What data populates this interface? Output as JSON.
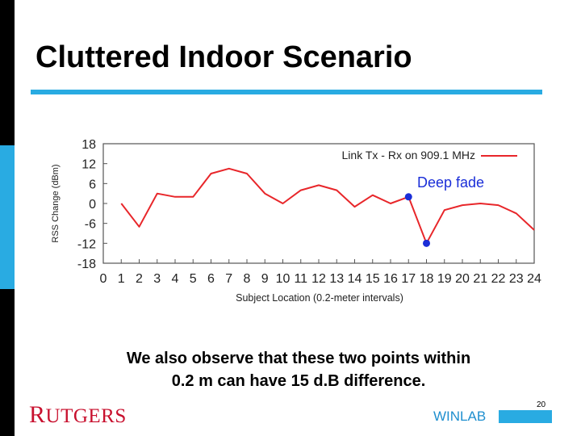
{
  "slide": {
    "title": "Cluttered Indoor Scenario",
    "caption_line1": "We also observe that these two points within",
    "caption_line2": "0.2 m can have 15 d.B difference.",
    "logo_text": "RUTGERS",
    "footer_text": "WINLAB",
    "page_number": "20",
    "accent_color": "#29abe2"
  },
  "chart_data": {
    "type": "line",
    "xlabel": "Subject Location (0.2-meter intervals)",
    "ylabel": "RSS Change (dBm)",
    "xlim": [
      0,
      24
    ],
    "ylim": [
      -18,
      18
    ],
    "xticks": [
      0,
      1,
      2,
      3,
      4,
      5,
      6,
      7,
      8,
      9,
      10,
      11,
      12,
      13,
      14,
      15,
      16,
      17,
      18,
      19,
      20,
      21,
      22,
      23,
      24
    ],
    "yticks": [
      18,
      12,
      6,
      0,
      -6,
      -12,
      -18
    ],
    "series": [
      {
        "name": "Link Tx - Rx on 909.1 MHz",
        "color": "#e8262a",
        "x": [
          1,
          2,
          3,
          4,
          5,
          6,
          7,
          8,
          9,
          10,
          11,
          12,
          13,
          14,
          15,
          16,
          17,
          18,
          19,
          20,
          21,
          22,
          23,
          24
        ],
        "y": [
          0,
          -7,
          3,
          2,
          2,
          9,
          10.5,
          9,
          3,
          0,
          4,
          5.5,
          4,
          -1,
          2.5,
          0,
          2,
          -12,
          -2,
          -0.5,
          0,
          -0.5,
          -3,
          -8
        ]
      }
    ],
    "highlight_points": [
      {
        "x": 17,
        "y": 2
      },
      {
        "x": 18,
        "y": -12
      }
    ],
    "highlight_color": "#1a2ed8",
    "annotation": {
      "text": "Deep fade",
      "color": "#1a2ed8"
    },
    "legend_position": "top-right",
    "grid": false
  }
}
